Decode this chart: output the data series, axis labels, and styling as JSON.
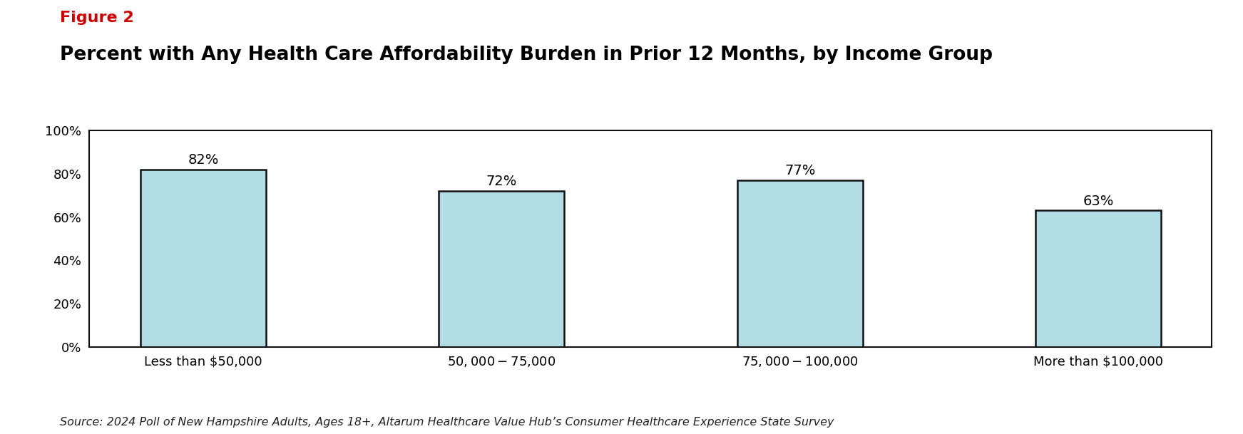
{
  "figure2_label": "Figure 2",
  "title": "Percent with Any Health Care Affordability Burden in Prior 12 Months, by Income Group",
  "categories": [
    "Less than $50,000",
    "$50,000 - $75,000",
    "$75,000 - $100,000",
    "More than $100,000"
  ],
  "values": [
    82,
    72,
    77,
    63
  ],
  "bar_color": "#b2dde4",
  "bar_edgecolor": "#111111",
  "bar_linewidth": 1.8,
  "ylim": [
    0,
    100
  ],
  "yticks": [
    0,
    20,
    40,
    60,
    80,
    100
  ],
  "ytick_labels": [
    "0%",
    "20%",
    "40%",
    "60%",
    "80%",
    "100%"
  ],
  "value_labels": [
    "82%",
    "72%",
    "77%",
    "63%"
  ],
  "source_text": "Source: 2024 Poll of New Hampshire Adults, Ages 18+, Altarum Healthcare Value Hub’s Consumer Healthcare Experience State Survey",
  "figure2_color": "#cc0000",
  "title_color": "#000000",
  "background_color": "#ffffff",
  "figure2_fontsize": 16,
  "title_fontsize": 19,
  "tick_fontsize": 13,
  "value_fontsize": 14,
  "source_fontsize": 11.5,
  "xlabel_fontsize": 13,
  "bar_width": 0.42
}
